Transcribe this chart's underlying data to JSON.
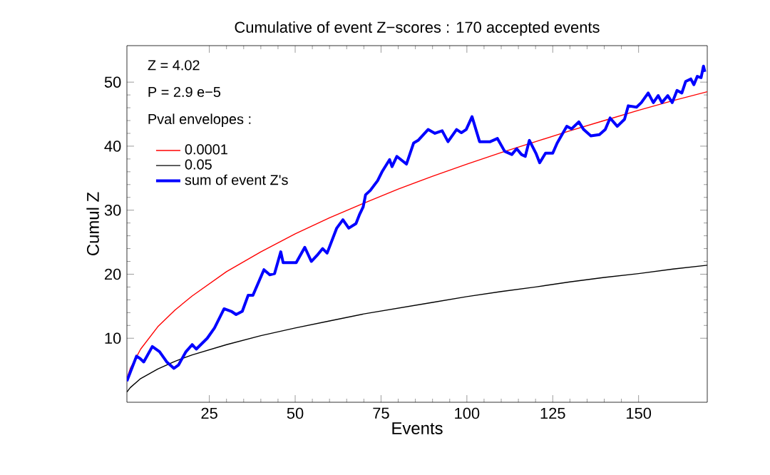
{
  "chart_data": {
    "type": "line",
    "title": "Cumulative of event Z−scores : 170 accepted events",
    "xlabel": "Events",
    "ylabel": "Cumul Z",
    "annotations": [
      "Z = 4.02",
      "P = 2.9 e−5",
      "Pval envelopes :"
    ],
    "xlim": [
      1,
      170
    ],
    "ylim": [
      0,
      55.7
    ],
    "xticks": [
      25,
      50,
      75,
      100,
      125,
      150
    ],
    "yticks": [
      10,
      20,
      30,
      40,
      50
    ],
    "legend": "top left",
    "grid": false,
    "marker": "none",
    "line_style": "solid",
    "series": [
      {
        "name": "0.0001",
        "color": "#ff0000",
        "x": [
          1,
          2,
          5,
          10,
          15,
          20,
          30,
          40,
          50,
          60,
          70,
          80,
          90,
          100,
          110,
          120,
          130,
          140,
          150,
          160,
          170
        ],
        "values": [
          3.7,
          5.3,
          8.3,
          11.8,
          14.4,
          16.6,
          20.4,
          23.5,
          26.3,
          28.8,
          31.1,
          33.3,
          35.3,
          37.2,
          39.0,
          40.7,
          42.4,
          44.0,
          45.6,
          47.1,
          48.5
        ]
      },
      {
        "name": "0.05",
        "color": "#000000",
        "x": [
          1,
          2,
          5,
          10,
          15,
          20,
          30,
          40,
          50,
          60,
          70,
          80,
          90,
          100,
          110,
          120,
          130,
          140,
          150,
          160,
          170
        ],
        "values": [
          1.6,
          2.3,
          3.7,
          5.2,
          6.4,
          7.4,
          9.0,
          10.4,
          11.6,
          12.7,
          13.8,
          14.7,
          15.6,
          16.5,
          17.3,
          18.0,
          18.8,
          19.5,
          20.1,
          20.8,
          21.4
        ]
      },
      {
        "name": "sum of event  Z's",
        "color": "#0000ff",
        "x": [
          1,
          3.8,
          4.9,
          5.9,
          8.4,
          10.5,
          12.6,
          14.7,
          16,
          18.2,
          20,
          21.2,
          24.4,
          26.5,
          29.3,
          31.4,
          32.8,
          34.6,
          36.3,
          37.7,
          40.9,
          42.6,
          44,
          45.8,
          46.5,
          50.3,
          52.8,
          54.7,
          56.3,
          58,
          59.3,
          62.1,
          63.9,
          65.6,
          67.7,
          68.8,
          69.8,
          70.5,
          71.9,
          74,
          75.4,
          77.5,
          78.2,
          79.6,
          82.4,
          84.5,
          85.8,
          88.7,
          90.7,
          92.8,
          94.5,
          97,
          98.4,
          99.8,
          101.5,
          103.7,
          106.8,
          108.9,
          111,
          113.1,
          114.5,
          115.9,
          117,
          118.2,
          120.1,
          121.2,
          122.9,
          125,
          126.3,
          129.1,
          130.5,
          132.6,
          134,
          136.1,
          138.6,
          140.3,
          141.7,
          143.8,
          145.9,
          147,
          149.4,
          150.8,
          152.8,
          154.3,
          155.7,
          156.8,
          158.5,
          159.8,
          161.2,
          162.6,
          163.7,
          165.2,
          166.1,
          167.1,
          168.2,
          168.9,
          169.3
        ],
        "values": [
          3.3,
          7.2,
          6.8,
          6.3,
          8.7,
          7.9,
          6.3,
          5.3,
          5.8,
          7.9,
          9.0,
          8.3,
          10,
          11.6,
          14.6,
          14.2,
          13.7,
          14.2,
          16.7,
          16.7,
          20.7,
          19.9,
          20.1,
          23.5,
          21.8,
          21.8,
          24.2,
          22,
          22.9,
          24,
          23.3,
          27.2,
          28.5,
          27.2,
          27.9,
          29.4,
          30.5,
          32.4,
          33.1,
          34.6,
          36.1,
          37.9,
          36.8,
          38.4,
          37.2,
          40.5,
          40.9,
          42.6,
          42,
          42.4,
          40.7,
          42.6,
          42.1,
          42.6,
          44.6,
          40.7,
          40.7,
          41.2,
          39.2,
          38.7,
          39.6,
          38.7,
          38.4,
          40.9,
          38.9,
          37.4,
          38.9,
          38.9,
          40.5,
          43.1,
          42.7,
          43.8,
          42.6,
          41.6,
          41.8,
          42.6,
          44.4,
          43.1,
          44.2,
          46.3,
          46.1,
          46.8,
          48.3,
          46.8,
          47.9,
          46.8,
          47.9,
          46.8,
          48.7,
          48.3,
          50.1,
          50.5,
          49.6,
          50.9,
          50.7,
          52.5,
          51.6
        ]
      }
    ]
  }
}
